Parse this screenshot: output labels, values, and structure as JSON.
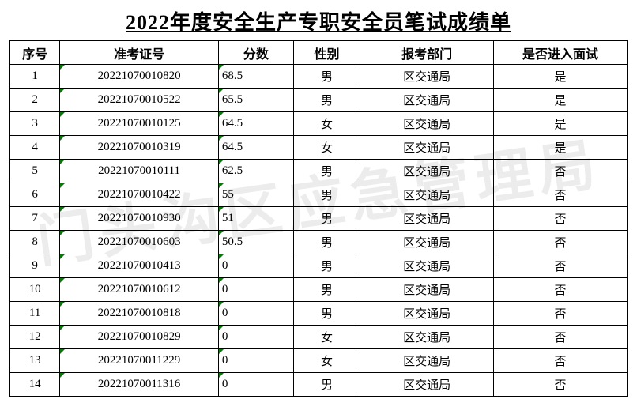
{
  "title": "2022年度安全生产专职安全员笔试成绩单",
  "watermark": "门头沟区应急管理局",
  "columns": {
    "seq": "序号",
    "id": "准考证号",
    "score": "分数",
    "gender": "性别",
    "dept": "报考部门",
    "interview": "是否进入面试"
  },
  "rows": [
    {
      "seq": "1",
      "id": "20221070010820",
      "score": "68.5",
      "gender": "男",
      "dept": "区交通局",
      "interview": "是"
    },
    {
      "seq": "2",
      "id": "20221070010522",
      "score": "65.5",
      "gender": "男",
      "dept": "区交通局",
      "interview": "是"
    },
    {
      "seq": "3",
      "id": "20221070010125",
      "score": "64.5",
      "gender": "女",
      "dept": "区交通局",
      "interview": "是"
    },
    {
      "seq": "4",
      "id": "20221070010319",
      "score": "64.5",
      "gender": "女",
      "dept": "区交通局",
      "interview": "是"
    },
    {
      "seq": "5",
      "id": "20221070010111",
      "score": "62.5",
      "gender": "男",
      "dept": "区交通局",
      "interview": "否"
    },
    {
      "seq": "6",
      "id": "20221070010422",
      "score": "55",
      "gender": "男",
      "dept": "区交通局",
      "interview": "否"
    },
    {
      "seq": "7",
      "id": "20221070010930",
      "score": "51",
      "gender": "男",
      "dept": "区交通局",
      "interview": "否"
    },
    {
      "seq": "8",
      "id": "20221070010603",
      "score": "50.5",
      "gender": "男",
      "dept": "区交通局",
      "interview": "否"
    },
    {
      "seq": "9",
      "id": "20221070010413",
      "score": "0",
      "gender": "男",
      "dept": "区交通局",
      "interview": "否"
    },
    {
      "seq": "10",
      "id": "20221070010612",
      "score": "0",
      "gender": "男",
      "dept": "区交通局",
      "interview": "否"
    },
    {
      "seq": "11",
      "id": "20221070010818",
      "score": "0",
      "gender": "男",
      "dept": "区交通局",
      "interview": "否"
    },
    {
      "seq": "12",
      "id": "20221070010829",
      "score": "0",
      "gender": "女",
      "dept": "区交通局",
      "interview": "否"
    },
    {
      "seq": "13",
      "id": "20221070011229",
      "score": "0",
      "gender": "女",
      "dept": "区交通局",
      "interview": "否"
    },
    {
      "seq": "14",
      "id": "20221070011316",
      "score": "0",
      "gender": "男",
      "dept": "区交通局",
      "interview": "否"
    }
  ]
}
